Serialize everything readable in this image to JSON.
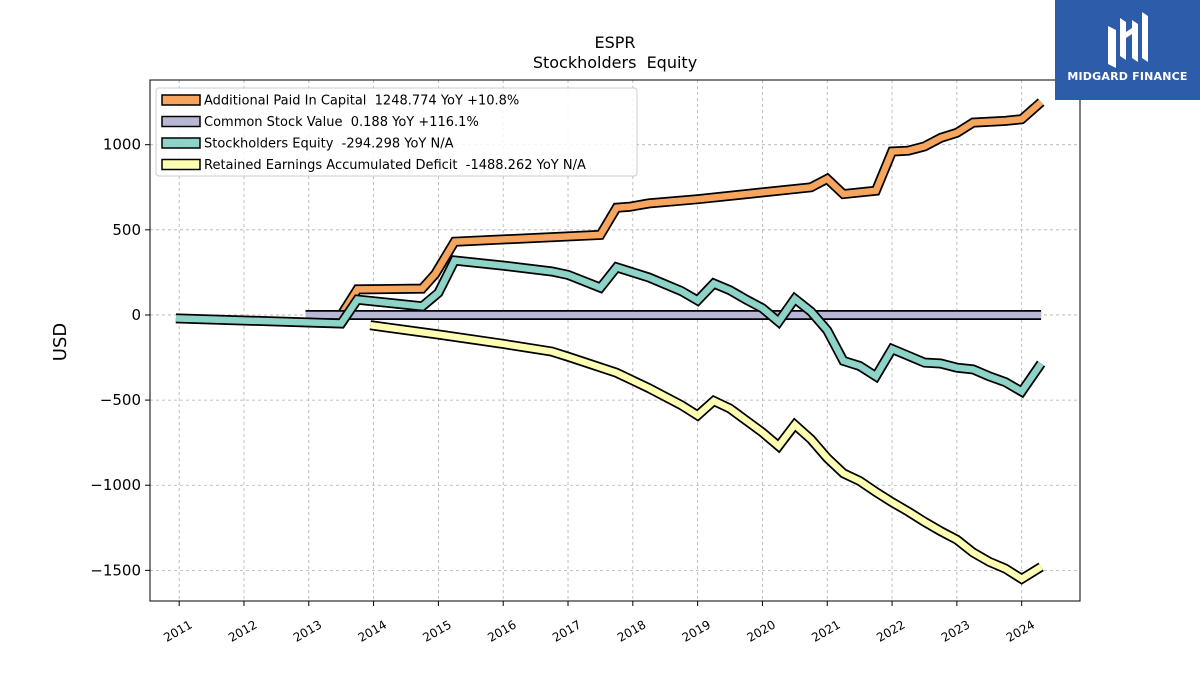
{
  "chart_data": {
    "type": "line",
    "title": "ESPR",
    "subtitle": "Stockholders  Equity",
    "ylabel": "USD",
    "xlabel": "",
    "ylim": [
      -1680,
      1380
    ],
    "xlim": [
      2010.55,
      2024.9
    ],
    "grid": true,
    "legend_position": "top-left",
    "yticks": [
      1000,
      500,
      0,
      -500,
      -1000,
      -1500
    ],
    "ytick_labels": [
      "1000",
      "500",
      "0",
      "−500",
      "−1000",
      "−1500"
    ],
    "xticks": [
      2011,
      2012,
      2013,
      2014,
      2015,
      2016,
      2017,
      2018,
      2019,
      2020,
      2021,
      2022,
      2023,
      2024
    ],
    "xtick_labels": [
      "2011",
      "2012",
      "2013",
      "2014",
      "2015",
      "2016",
      "2017",
      "2018",
      "2019",
      "2020",
      "2021",
      "2022",
      "2023",
      "2024"
    ],
    "series": [
      {
        "name": "Additional Paid In Capital  1248.774 YoY +10.8%",
        "color": "#f6a55f",
        "points": [
          [
            2013.5,
            0
          ],
          [
            2013.75,
            150
          ],
          [
            2014.75,
            155
          ],
          [
            2014.95,
            240
          ],
          [
            2015.25,
            430
          ],
          [
            2017.5,
            470
          ],
          [
            2017.75,
            630
          ],
          [
            2017.95,
            635
          ],
          [
            2018.25,
            655
          ],
          [
            2019.0,
            680
          ],
          [
            2019.75,
            710
          ],
          [
            2020.0,
            720
          ],
          [
            2020.75,
            750
          ],
          [
            2021.0,
            800
          ],
          [
            2021.25,
            710
          ],
          [
            2021.75,
            730
          ],
          [
            2022.0,
            960
          ],
          [
            2022.25,
            965
          ],
          [
            2022.5,
            990
          ],
          [
            2022.75,
            1040
          ],
          [
            2023.0,
            1070
          ],
          [
            2023.25,
            1130
          ],
          [
            2023.75,
            1140
          ],
          [
            2024.0,
            1150
          ],
          [
            2024.3,
            1250
          ]
        ]
      },
      {
        "name": "Common Stock Value  0.188 YoY +116.1%",
        "color": "#b8b8d6",
        "points": [
          [
            2012.95,
            0
          ],
          [
            2024.3,
            0
          ]
        ]
      },
      {
        "name": "Stockholders Equity  -294.298 YoY N/A",
        "color": "#8dd3c7",
        "points": [
          [
            2010.95,
            -20
          ],
          [
            2013.5,
            -50
          ],
          [
            2013.75,
            90
          ],
          [
            2014.75,
            50
          ],
          [
            2015.0,
            130
          ],
          [
            2015.25,
            320
          ],
          [
            2016.0,
            290
          ],
          [
            2016.75,
            255
          ],
          [
            2017.0,
            235
          ],
          [
            2017.5,
            160
          ],
          [
            2017.75,
            280
          ],
          [
            2018.25,
            220
          ],
          [
            2018.75,
            140
          ],
          [
            2019.0,
            85
          ],
          [
            2019.25,
            185
          ],
          [
            2019.5,
            145
          ],
          [
            2019.75,
            90
          ],
          [
            2020.0,
            40
          ],
          [
            2020.25,
            -40
          ],
          [
            2020.5,
            95
          ],
          [
            2020.75,
            20
          ],
          [
            2021.0,
            -90
          ],
          [
            2021.25,
            -270
          ],
          [
            2021.5,
            -300
          ],
          [
            2021.75,
            -360
          ],
          [
            2022.0,
            -200
          ],
          [
            2022.25,
            -240
          ],
          [
            2022.5,
            -280
          ],
          [
            2022.75,
            -285
          ],
          [
            2023.0,
            -310
          ],
          [
            2023.25,
            -320
          ],
          [
            2023.5,
            -360
          ],
          [
            2023.75,
            -395
          ],
          [
            2024.0,
            -450
          ],
          [
            2024.3,
            -285
          ]
        ]
      },
      {
        "name": "Retained Earnings Accumulated Deficit  -1488.262 YoY N/A",
        "color": "#ffffb3",
        "points": [
          [
            2013.95,
            -60
          ],
          [
            2015.0,
            -115
          ],
          [
            2016.0,
            -170
          ],
          [
            2016.75,
            -215
          ],
          [
            2017.0,
            -245
          ],
          [
            2017.75,
            -340
          ],
          [
            2018.25,
            -430
          ],
          [
            2018.75,
            -530
          ],
          [
            2019.0,
            -590
          ],
          [
            2019.25,
            -505
          ],
          [
            2019.5,
            -550
          ],
          [
            2019.75,
            -620
          ],
          [
            2020.0,
            -690
          ],
          [
            2020.25,
            -770
          ],
          [
            2020.5,
            -645
          ],
          [
            2020.75,
            -730
          ],
          [
            2021.0,
            -840
          ],
          [
            2021.25,
            -930
          ],
          [
            2021.5,
            -975
          ],
          [
            2021.75,
            -1040
          ],
          [
            2022.0,
            -1100
          ],
          [
            2022.25,
            -1155
          ],
          [
            2022.5,
            -1215
          ],
          [
            2022.75,
            -1270
          ],
          [
            2023.0,
            -1320
          ],
          [
            2023.25,
            -1395
          ],
          [
            2023.5,
            -1450
          ],
          [
            2023.75,
            -1490
          ],
          [
            2024.0,
            -1550
          ],
          [
            2024.3,
            -1480
          ]
        ]
      }
    ]
  },
  "logo": {
    "text": "MIDGARD FINANCE"
  }
}
